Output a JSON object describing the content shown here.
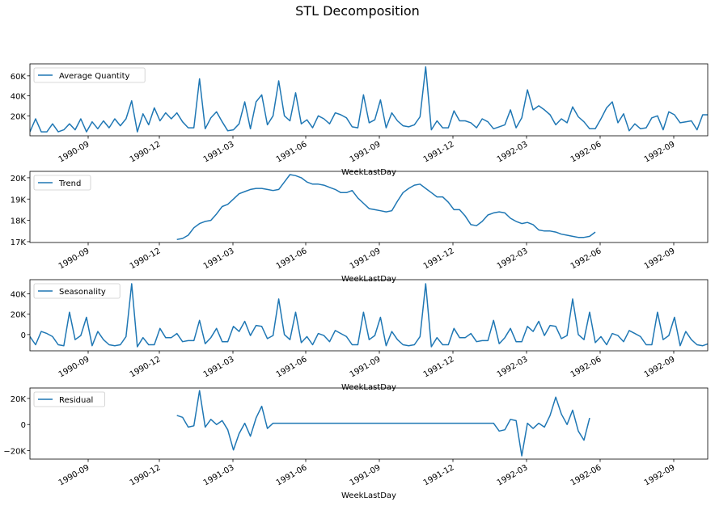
{
  "figure": {
    "title": "STL Decomposition"
  },
  "colors": {
    "line": "#1f77b4",
    "axes": "#000000",
    "background": "#ffffff"
  },
  "chart_data": [
    {
      "type": "line",
      "panel": "observed",
      "legend": "Average Quantity",
      "legend_loc": "upper-left",
      "xlabel": "WeekLastDay",
      "x_ticks": [
        "1990-09",
        "1990-12",
        "1991-03",
        "1991-06",
        "1991-09",
        "1991-12",
        "1992-03",
        "1992-06",
        "1992-09"
      ],
      "y_ticks": [
        {
          "value": 20000,
          "label": "20K"
        },
        {
          "value": 40000,
          "label": "40K"
        },
        {
          "value": 60000,
          "label": "60K"
        }
      ],
      "ylim": [
        0,
        72000
      ],
      "x_start": 0,
      "values": [
        4000,
        17000,
        4000,
        4000,
        12000,
        4000,
        6000,
        12000,
        6000,
        17000,
        4000,
        14000,
        7000,
        15000,
        8000,
        17000,
        10000,
        17000,
        35000,
        4000,
        22000,
        11000,
        28000,
        15000,
        23000,
        17000,
        23000,
        14000,
        8000,
        8000,
        57000,
        7000,
        18000,
        24000,
        14000,
        5000,
        6000,
        12000,
        34000,
        7000,
        34000,
        41000,
        11000,
        20000,
        55000,
        20000,
        15000,
        43000,
        12000,
        16000,
        8000,
        20000,
        17000,
        12000,
        23000,
        21000,
        18000,
        9000,
        8000,
        41000,
        13000,
        16000,
        36000,
        8000,
        23000,
        15000,
        10000,
        9000,
        11000,
        19000,
        69000,
        6000,
        15000,
        8000,
        8000,
        25000,
        15000,
        15000,
        13000,
        8000,
        17000,
        14000,
        7000,
        9000,
        11000,
        26000,
        8000,
        18000,
        46000,
        26000,
        30000,
        26000,
        21000,
        11000,
        17000,
        13000,
        29000,
        19000,
        14000,
        7000,
        7000,
        17000,
        28000,
        34000,
        13000,
        22000,
        5000,
        12000,
        7000,
        8000,
        18000,
        20000,
        6000,
        24000,
        21000,
        13000,
        14000,
        15000,
        6000,
        21000,
        21000
      ]
    },
    {
      "type": "line",
      "panel": "trend",
      "legend": "Trend",
      "legend_loc": "upper-left",
      "xlabel": "WeekLastDay",
      "x_ticks": [
        "1990-09",
        "1990-12",
        "1991-03",
        "1991-06",
        "1991-09",
        "1991-12",
        "1992-03",
        "1992-06",
        "1992-09"
      ],
      "y_ticks": [
        {
          "value": 17000,
          "label": "17K"
        },
        {
          "value": 18000,
          "label": "18K"
        },
        {
          "value": 19000,
          "label": "19K"
        },
        {
          "value": 20000,
          "label": "20K"
        }
      ],
      "ylim": [
        16960,
        20300
      ],
      "x_start": 26,
      "values": [
        17100,
        17150,
        17300,
        17650,
        17850,
        17950,
        18000,
        18300,
        18650,
        18750,
        19000,
        19250,
        19350,
        19450,
        19500,
        19500,
        19450,
        19400,
        19450,
        19800,
        20150,
        20100,
        20000,
        19800,
        19700,
        19700,
        19650,
        19550,
        19450,
        19300,
        19300,
        19400,
        19050,
        18800,
        18550,
        18500,
        18450,
        18400,
        18450,
        18900,
        19300,
        19500,
        19650,
        19700,
        19500,
        19300,
        19100,
        19100,
        18850,
        18500,
        18500,
        18200,
        17800,
        17750,
        17950,
        18250,
        18350,
        18400,
        18350,
        18100,
        17950,
        17850,
        17900,
        17800,
        17550,
        17500,
        17500,
        17450,
        17350,
        17300,
        17250,
        17200,
        17200,
        17250,
        17450
      ]
    },
    {
      "type": "line",
      "panel": "seasonal",
      "legend": "Seasonality",
      "legend_loc": "upper-left",
      "xlabel": "WeekLastDay",
      "x_ticks": [
        "1990-09",
        "1990-12",
        "1991-03",
        "1991-06",
        "1991-09",
        "1991-12",
        "1992-03",
        "1992-06",
        "1992-09"
      ],
      "y_ticks": [
        {
          "value": 0,
          "label": "0"
        },
        {
          "value": 20000,
          "label": "20K"
        },
        {
          "value": 40000,
          "label": "40K"
        }
      ],
      "ylim": [
        -16000,
        54000
      ],
      "x_start": 0,
      "values": [
        -2000,
        -10000,
        3000,
        1000,
        -2000,
        -10000,
        -11000,
        22000,
        -5000,
        -1000,
        17000,
        -11000,
        3000,
        -5000,
        -10000,
        -11000,
        -10000,
        -2000,
        50000,
        -12000,
        -3000,
        -10000,
        -10000,
        6000,
        -3000,
        -3000,
        1000,
        -7000,
        -6000,
        -6000,
        14000,
        -9000,
        -3000,
        6000,
        -7000,
        -7000,
        8000,
        3000,
        13000,
        -1000,
        9000,
        8000,
        -4000,
        -1000,
        35000,
        0,
        -5000,
        22000,
        -8000,
        -2000,
        -10000,
        1000,
        -1000,
        -7000,
        4000,
        1000,
        -2000,
        -10000,
        -10000,
        22000,
        -5000,
        -1000,
        17000,
        -11000,
        3000,
        -5000,
        -10000,
        -11000,
        -10000,
        -2000,
        50000,
        -12000,
        -3000,
        -10000,
        -10000,
        6000,
        -3000,
        -3000,
        1000,
        -7000,
        -6000,
        -6000,
        14000,
        -9000,
        -3000,
        6000,
        -7000,
        -7000,
        8000,
        3000,
        13000,
        -1000,
        9000,
        8000,
        -4000,
        -1000,
        35000,
        0,
        -5000,
        22000,
        -8000,
        -2000,
        -10000,
        1000,
        -1000,
        -7000,
        4000,
        1000,
        -2000,
        -10000,
        -10000,
        22000,
        -5000,
        -1000,
        17000,
        -11000,
        3000,
        -5000,
        -10000,
        -11000,
        -9000
      ]
    },
    {
      "type": "line",
      "panel": "residual",
      "legend": "Residual",
      "legend_loc": "upper-left",
      "xlabel": "WeekLastDay",
      "x_ticks": [
        "1990-09",
        "1990-12",
        "1991-03",
        "1991-06",
        "1991-09",
        "1991-12",
        "1992-03",
        "1992-06",
        "1992-09"
      ],
      "y_ticks": [
        {
          "value": -20000,
          "label": "−20K"
        },
        {
          "value": 0,
          "label": "0"
        },
        {
          "value": 20000,
          "label": "20K"
        }
      ],
      "ylim": [
        -26500,
        28000
      ],
      "x_start": 26,
      "values": [
        7000,
        5500,
        -2000,
        -1000,
        26000,
        -2000,
        4000,
        0,
        3000,
        -4000,
        -19500,
        -7000,
        1000,
        -9000,
        5000,
        14000,
        -3000,
        1000,
        1000,
        1000,
        1000,
        1000,
        1000,
        1000,
        1000,
        1000,
        1000,
        1000,
        1000,
        1000,
        1000,
        1000,
        1000,
        1000,
        1000,
        1000,
        1000,
        1000,
        1000,
        1000,
        1000,
        1000,
        1000,
        1000,
        1000,
        1000,
        1000,
        1000,
        1000,
        1000,
        1000,
        1000,
        1000,
        1000,
        1000,
        1000,
        1000,
        -5000,
        -4000,
        4000,
        3000,
        -24000,
        1000,
        -3000,
        1000,
        -2000,
        7000,
        21000,
        8000,
        0,
        11000,
        -5000,
        -12000,
        5000
      ]
    }
  ]
}
